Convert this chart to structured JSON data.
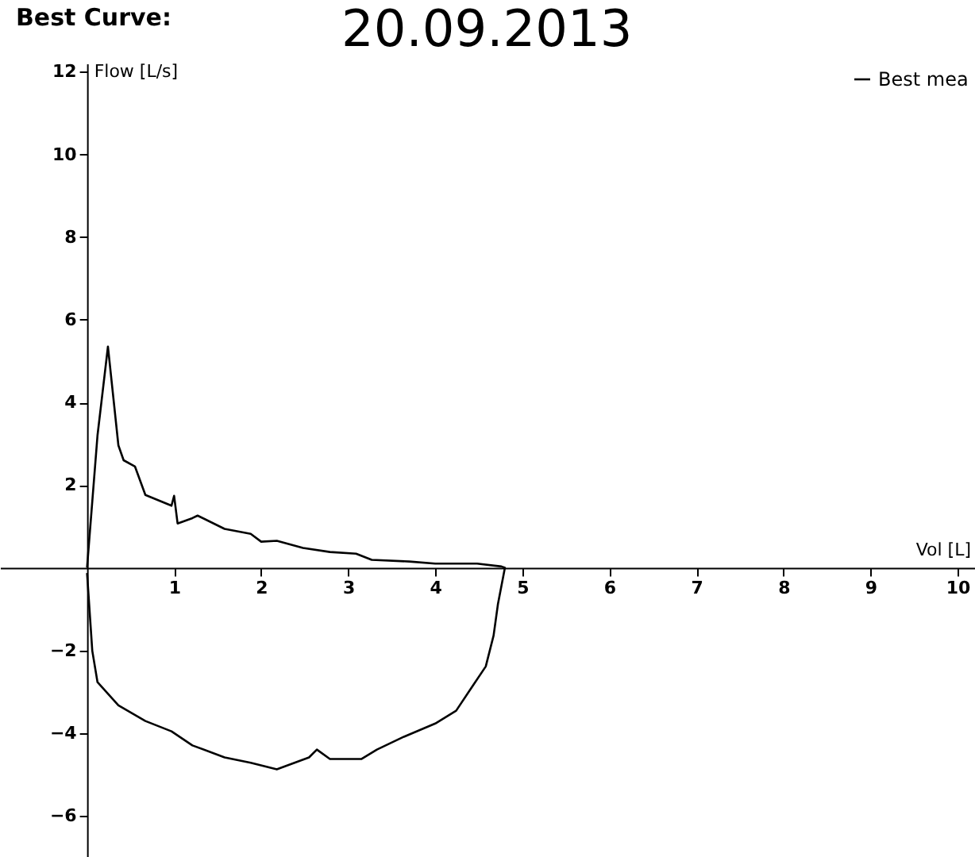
{
  "chart_data": {
    "type": "line",
    "title": "Best Curve:",
    "subtitle": "20.09.2013",
    "xlabel": "Vol [L]",
    "ylabel": "Flow [L/s]",
    "xlim": [
      -1,
      10.2
    ],
    "ylim": [
      -7,
      12.2
    ],
    "xticks": [
      1,
      2,
      3,
      4,
      5,
      6,
      7,
      8,
      9,
      10
    ],
    "yticks": [
      -6,
      -4,
      -2,
      2,
      4,
      6,
      8,
      10,
      12
    ],
    "legend": "top right",
    "series": [
      {
        "name": "Best mea",
        "color": "#000000",
        "x": [
          0,
          0.12,
          0.24,
          0.36,
          0.42,
          0.55,
          0.67,
          0.97,
          1.0,
          1.04,
          1.21,
          1.27,
          1.58,
          1.88,
          2.0,
          2.18,
          2.48,
          2.79,
          3.09,
          3.27,
          3.7,
          4.0,
          4.48,
          4.76,
          4.8,
          4.72,
          4.67,
          4.58,
          4.42,
          4.24,
          4.0,
          3.64,
          3.33,
          3.15,
          2.79,
          2.64,
          2.55,
          2.18,
          1.88,
          1.58,
          1.21,
          0.97,
          0.67,
          0.36,
          0.12,
          0.06,
          0.0
        ],
        "values": [
          0,
          3.2,
          5.35,
          2.96,
          2.6,
          2.45,
          1.76,
          1.5,
          1.74,
          1.07,
          1.2,
          1.26,
          0.94,
          0.82,
          0.63,
          0.65,
          0.48,
          0.38,
          0.34,
          0.19,
          0.15,
          0.1,
          0.1,
          0.03,
          0,
          -0.88,
          -1.64,
          -2.39,
          -2.89,
          -3.46,
          -3.77,
          -4.09,
          -4.4,
          -4.63,
          -4.63,
          -4.4,
          -4.59,
          -4.88,
          -4.72,
          -4.59,
          -4.3,
          -3.96,
          -3.71,
          -3.33,
          -2.77,
          -2.01,
          -0.13
        ]
      }
    ]
  }
}
